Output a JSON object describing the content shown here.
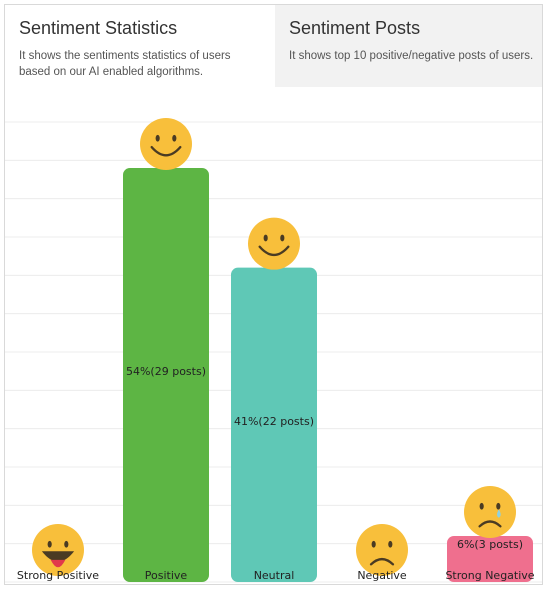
{
  "tabs": [
    {
      "title": "Sentiment Statistics",
      "description": "It shows the sentiments statistics of users based on our AI enabled algorithms.",
      "active": true
    },
    {
      "title": "Sentiment Posts",
      "description": "It shows top 10 positive/negative posts of users.",
      "active": false
    }
  ],
  "colors": {
    "tab_inactive_bg": "#f2f2f2",
    "gridline": "#ececec",
    "emoji_face": "#f8bf3b",
    "emoji_feature": "#4a3b23",
    "tongue": "#e1384b",
    "tear": "#8fd1e0"
  },
  "chart_data": {
    "type": "bar",
    "title": "",
    "xlabel": "",
    "ylabel": "",
    "ylim": [
      0,
      60
    ],
    "grid": true,
    "categories": [
      "Strong Positive",
      "Positive",
      "Neutral",
      "Negative",
      "Strong Negative"
    ],
    "values": [
      0,
      54,
      41,
      0,
      6
    ],
    "value_labels": [
      "",
      "54%(29 posts)",
      "41%(22 posts)",
      "",
      "6%(3 posts)"
    ],
    "bar_colors": [
      "#5db544",
      "#5db544",
      "#5fc8b6",
      "#ef6f8e",
      "#ef6f8e"
    ],
    "emojis": [
      "grin-tongue-icon",
      "smile-icon",
      "smile-icon",
      "frown-icon",
      "sad-tear-icon"
    ]
  }
}
